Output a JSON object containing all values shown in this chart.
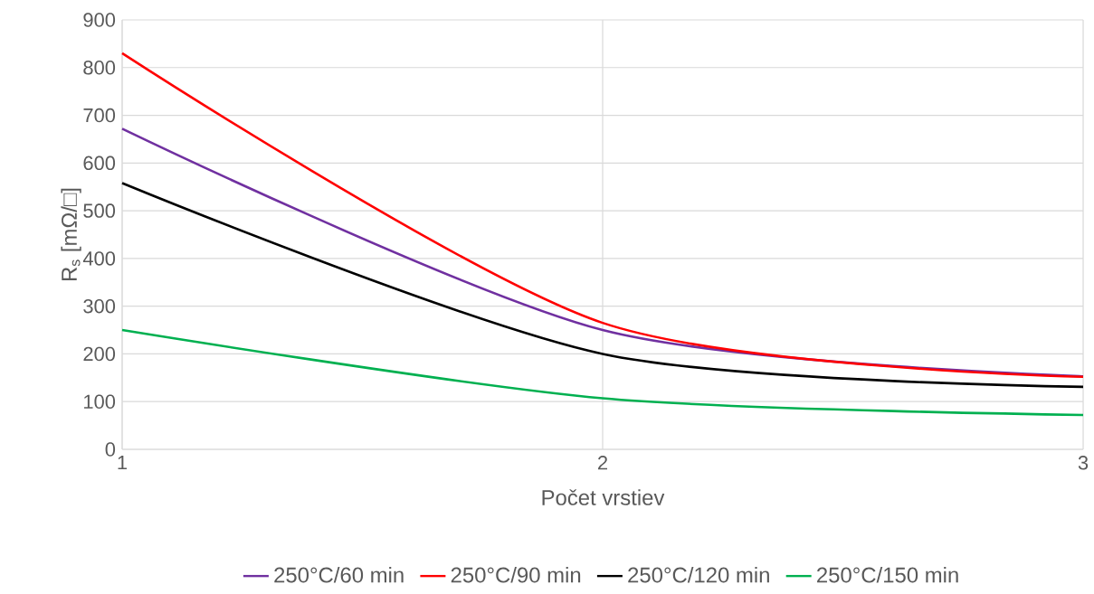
{
  "chart_data": {
    "type": "line",
    "xlabel": "Počet vrstiev",
    "ylabel": "R$_{s}$ [mΩ/□]",
    "x": [
      1,
      2,
      3
    ],
    "series": [
      {
        "name": "250°C/60 min",
        "color": "#7030a0",
        "values": [
          672,
          250,
          153
        ]
      },
      {
        "name": "250°C/90 min",
        "color": "#ff0000",
        "values": [
          830,
          265,
          152
        ]
      },
      {
        "name": "250°C/120 min",
        "color": "#000000",
        "values": [
          558,
          200,
          131
        ]
      },
      {
        "name": "250°C/150 min",
        "color": "#00b050",
        "values": [
          250,
          107,
          72
        ]
      }
    ],
    "xlim": [
      1,
      3
    ],
    "ylim": [
      0,
      900
    ],
    "xticks": [
      1,
      2,
      3
    ],
    "yticks": [
      0,
      100,
      200,
      300,
      400,
      500,
      600,
      700,
      800,
      900
    ],
    "grid": true,
    "legend": "bottom",
    "marker": "none",
    "line_style": "solid"
  }
}
